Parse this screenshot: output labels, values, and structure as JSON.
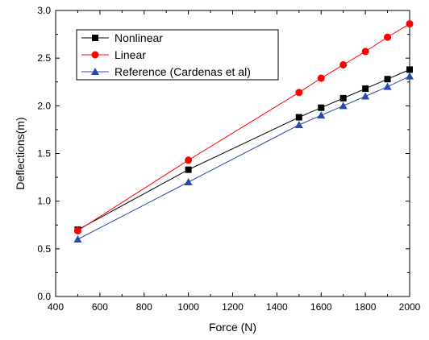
{
  "chart_data": {
    "type": "line",
    "title": "",
    "xlabel": "Force (N)",
    "ylabel": "Deflections(m)",
    "xlim": [
      400,
      2000
    ],
    "ylim": [
      0.0,
      3.0
    ],
    "x_ticks": [
      "400",
      "600",
      "800",
      "1000",
      "1200",
      "1400",
      "1600",
      "1800",
      "2000"
    ],
    "y_ticks": [
      "0.0",
      "0.5",
      "1.0",
      "1.5",
      "2.0",
      "2.5",
      "3.0"
    ],
    "grid": false,
    "legend_position": "top-left",
    "series": [
      {
        "name": "Nonlinear",
        "color": "#000000",
        "marker": "square",
        "x": [
          500,
          1000,
          1500,
          1600,
          1700,
          1800,
          1900,
          2000
        ],
        "y": [
          0.7,
          1.33,
          1.88,
          1.98,
          2.08,
          2.18,
          2.28,
          2.38
        ]
      },
      {
        "name": "Linear",
        "color": "#ff0000",
        "marker": "circle",
        "x": [
          500,
          1000,
          1500,
          1600,
          1700,
          1800,
          1900,
          2000
        ],
        "y": [
          0.69,
          1.43,
          2.14,
          2.29,
          2.43,
          2.57,
          2.72,
          2.86
        ]
      },
      {
        "name": "Reference (Cardenas et al)",
        "color": "#2b4aa8",
        "marker": "triangle",
        "x": [
          500,
          1000,
          1500,
          1600,
          1700,
          1800,
          1900,
          2000
        ],
        "y": [
          0.6,
          1.2,
          1.8,
          1.9,
          2.0,
          2.1,
          2.2,
          2.31
        ]
      }
    ]
  }
}
